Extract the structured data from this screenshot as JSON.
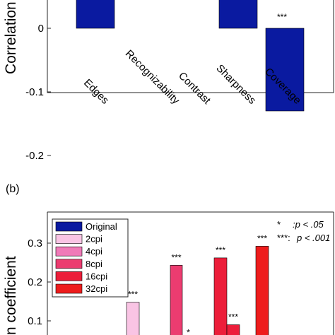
{
  "panel_b_label": "(b)",
  "chart_data": [
    {
      "type": "bar",
      "ylabel": "Correlation",
      "ylim": [
        -0.2,
        0.05
      ],
      "yticks": [
        "-0.2",
        "-0.1",
        "0"
      ],
      "categories": [
        "Edges",
        "Recognizability",
        "Contrast",
        "Sharpness",
        "Coverage"
      ],
      "values": [
        0.05,
        0,
        0,
        0.05,
        -0.13
      ],
      "significance": [
        "",
        "",
        "",
        "",
        "***"
      ],
      "bar_color": "#0a1aa0",
      "grid": false
    },
    {
      "type": "bar",
      "ylabel": "n coefficient",
      "ylim": [
        0.05,
        0.35
      ],
      "yticks": [
        "0.1",
        "0.2",
        "0.3"
      ],
      "series": [
        {
          "name": "Original",
          "color": "#0a1aa0"
        },
        {
          "name": "2cpi",
          "color": "#f9c4e4"
        },
        {
          "name": "4cpi",
          "color": "#f07ab8"
        },
        {
          "name": "8cpi",
          "color": "#ec3c70"
        },
        {
          "name": "16cpi",
          "color": "#ec1e3a"
        },
        {
          "name": "32cpi",
          "color": "#ee1c1c"
        }
      ],
      "bars": [
        {
          "series": "2cpi",
          "value": 0.148,
          "sig": "***"
        },
        {
          "series": "8cpi",
          "value": 0.243,
          "sig": "***"
        },
        {
          "series": "8cpi",
          "value": 0.05,
          "sig": "*"
        },
        {
          "series": "16cpi",
          "value": 0.262,
          "sig": "***"
        },
        {
          "series": "16cpi",
          "value": 0.09,
          "sig": "***"
        },
        {
          "series": "32cpi",
          "value": 0.292,
          "sig": "***"
        }
      ],
      "legend_position": "top-left",
      "annotations": {
        "line1_star": "*",
        "line1_text": ":p  < .05",
        "line2_star": "***:",
        "line2_text": "p  < .001"
      },
      "grid": false
    }
  ]
}
